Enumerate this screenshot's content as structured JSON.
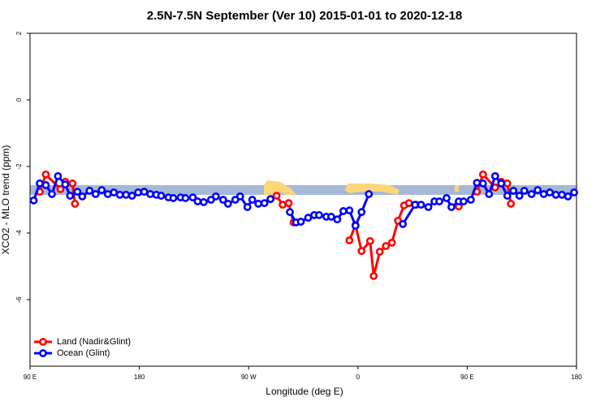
{
  "chart_data": {
    "type": "line",
    "title": "2.5N-7.5N September (Ver 10)   2015-01-01 to 2020-12-18",
    "x_label": "Longitude (deg E)",
    "y_label": "XCO2 - MLO trend (ppm)",
    "xlim": [
      90,
      540
    ],
    "ylim": [
      -8,
      2
    ],
    "xticks": [
      {
        "value": 90,
        "label": "90 E"
      },
      {
        "value": 180,
        "label": "180"
      },
      {
        "value": 270,
        "label": "90 W"
      },
      {
        "value": 360,
        "label": "0"
      },
      {
        "value": 450,
        "label": "90 E"
      },
      {
        "value": 540,
        "label": "180"
      }
    ],
    "yticks": [
      2,
      0,
      -2,
      -4,
      -6
    ],
    "legend": "bottom-left",
    "series": [
      {
        "name": "Land (Nadir&Glint)",
        "color": "#ff0000",
        "x": [
          98,
          103,
          115,
          119,
          125,
          127,
          null,
          288,
          293,
          298,
          303,
          307,
          null,
          353,
          358,
          363,
          370,
          373,
          378,
          383,
          388,
          393,
          398,
          402,
          408,
          null,
          443,
          null,
          458,
          463,
          473,
          478,
          483,
          486
        ],
        "values": [
          -2.76,
          -2.24,
          -2.68,
          -2.46,
          -2.51,
          -3.12,
          null,
          -2.98,
          -2.88,
          -3.15,
          -3.1,
          -3.68,
          null,
          -4.22,
          -3.76,
          -4.54,
          -4.24,
          -5.29,
          -4.56,
          -4.39,
          -4.29,
          -3.63,
          -3.17,
          -3.1,
          -3.15,
          null,
          -3.2,
          null,
          -2.76,
          -2.24,
          -2.63,
          -2.46,
          -2.51,
          -3.12
        ]
      },
      {
        "name": "Ocean (Glint)",
        "color": "#0000ff",
        "x": [
          93,
          98,
          103,
          108,
          113,
          119,
          123,
          129,
          133,
          139,
          144,
          149,
          154,
          159,
          164,
          169,
          174,
          179,
          184,
          189,
          194,
          198,
          204,
          208,
          214,
          218,
          224,
          228,
          233,
          239,
          243,
          249,
          253,
          259,
          263,
          269,
          273,
          278,
          283,
          288,
          null,
          304,
          309,
          313,
          319,
          324,
          328,
          334,
          338,
          343,
          348,
          353,
          358,
          363,
          369,
          null,
          397,
          407,
          412,
          418,
          423,
          427,
          433,
          437,
          443,
          447,
          453,
          458,
          463,
          468,
          473,
          478,
          483,
          488,
          493,
          497,
          503,
          508,
          513,
          518,
          523,
          528,
          533,
          538
        ],
        "values": [
          -3.02,
          -2.51,
          -2.56,
          -2.83,
          -2.29,
          -2.54,
          -2.88,
          -2.76,
          -2.9,
          -2.73,
          -2.83,
          -2.71,
          -2.83,
          -2.78,
          -2.85,
          -2.85,
          -2.88,
          -2.78,
          -2.76,
          -2.83,
          -2.85,
          -2.88,
          -2.93,
          -2.95,
          -2.93,
          -2.95,
          -2.93,
          -3.05,
          -3.07,
          -3.0,
          -2.9,
          -3.0,
          -3.12,
          -3.0,
          -2.9,
          -3.22,
          -3.0,
          -3.12,
          -3.1,
          -2.98,
          null,
          -3.37,
          -3.68,
          -3.66,
          -3.54,
          -3.46,
          -3.46,
          -3.51,
          -3.51,
          -3.59,
          -3.34,
          -3.32,
          -3.78,
          -3.37,
          -2.83,
          null,
          -3.73,
          -3.15,
          -3.15,
          -3.22,
          -3.05,
          -3.05,
          -2.95,
          -3.22,
          -3.05,
          -3.05,
          -3.0,
          -2.49,
          -2.51,
          -2.83,
          -2.29,
          -2.51,
          -2.88,
          -2.73,
          -2.88,
          -2.73,
          -2.83,
          -2.71,
          -2.83,
          -2.78,
          -2.85,
          -2.85,
          -2.9,
          -2.78
        ]
      }
    ]
  }
}
